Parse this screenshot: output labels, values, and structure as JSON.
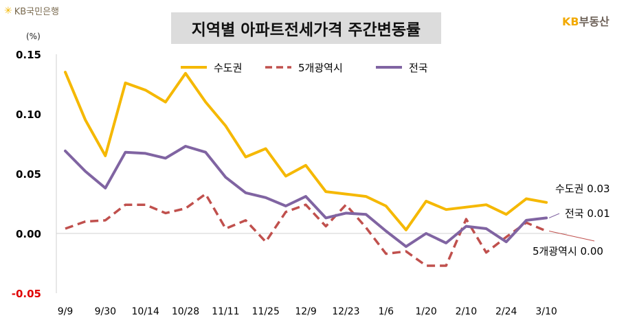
{
  "header": {
    "kb_logo": "KB국민은행",
    "brand_kb": "KB",
    "brand_suffix": "부동산"
  },
  "chart_data": {
    "type": "line",
    "title": "지역별 아파트전세가격 주간변동률",
    "unit": "(%)",
    "ylim": [
      -0.05,
      0.15
    ],
    "yticks": [
      "0.15",
      "0.10",
      "0.05",
      "0.00",
      "-0.05"
    ],
    "ytick_values": [
      0.15,
      0.1,
      0.05,
      0.0,
      -0.05
    ],
    "x_tick_labels": [
      "9/9",
      "9/30",
      "10/14",
      "10/28",
      "11/11",
      "11/25",
      "12/9",
      "12/23",
      "1/6",
      "1/20",
      "2/10",
      "2/24",
      "3/10"
    ],
    "x_tick_indices": [
      0,
      2,
      4,
      6,
      8,
      10,
      12,
      14,
      16,
      18,
      20,
      22,
      24
    ],
    "series": [
      {
        "name": "수도권",
        "color": "#f5b800",
        "style": "solid",
        "values": [
          0.135,
          0.095,
          0.065,
          0.126,
          0.12,
          0.11,
          0.134,
          0.11,
          0.09,
          0.064,
          0.071,
          0.048,
          0.057,
          0.035,
          0.033,
          0.031,
          0.023,
          0.003,
          0.027,
          0.02,
          0.022,
          0.024,
          0.016,
          0.029,
          0.026
        ]
      },
      {
        "name": "5개광역시",
        "color": "#c0504d",
        "style": "dashed",
        "values": [
          0.004,
          0.01,
          0.011,
          0.024,
          0.024,
          0.017,
          0.021,
          0.033,
          0.004,
          0.011,
          -0.007,
          0.018,
          0.024,
          0.006,
          0.024,
          0.005,
          -0.017,
          -0.015,
          -0.027,
          -0.027,
          0.012,
          -0.016,
          -0.003,
          0.009,
          0.002
        ]
      },
      {
        "name": "전국",
        "color": "#8064a2",
        "style": "solid",
        "values": [
          0.069,
          0.052,
          0.038,
          0.068,
          0.067,
          0.063,
          0.073,
          0.068,
          0.047,
          0.034,
          0.03,
          0.023,
          0.031,
          0.013,
          0.017,
          0.016,
          0.002,
          -0.011,
          0.0,
          -0.008,
          0.006,
          0.004,
          -0.007,
          0.011,
          0.013
        ]
      }
    ],
    "end_labels": [
      {
        "name": "수도권",
        "value": "0.03"
      },
      {
        "name": "전국",
        "value": "0.01"
      },
      {
        "name": "5개광역시",
        "value": "0.00"
      }
    ]
  }
}
